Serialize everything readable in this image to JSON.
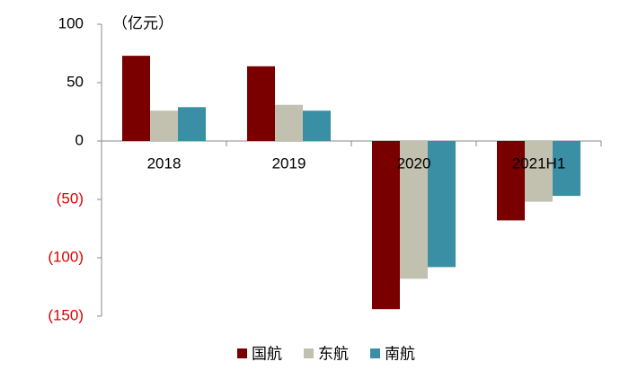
{
  "chart_data": {
    "type": "bar",
    "unit": "（亿元）",
    "categories": [
      "2018",
      "2019",
      "2020",
      "2021H1"
    ],
    "series": [
      {
        "name": "国航",
        "color": "#7a0000",
        "values": [
          73,
          64,
          -144,
          -68
        ]
      },
      {
        "name": "东航",
        "color": "#c2c1b0",
        "values": [
          26,
          31,
          -118,
          -52
        ]
      },
      {
        "name": "南航",
        "color": "#3a8fa4",
        "values": [
          29,
          26,
          -108,
          -47
        ]
      }
    ],
    "ylim": [
      -150,
      100
    ],
    "yticks": [
      {
        "value": -150,
        "label": "(150)"
      },
      {
        "value": -100,
        "label": "(100)"
      },
      {
        "value": -50,
        "label": "(50)"
      },
      0,
      50,
      100
    ],
    "grid": false,
    "legend": "bottom"
  }
}
